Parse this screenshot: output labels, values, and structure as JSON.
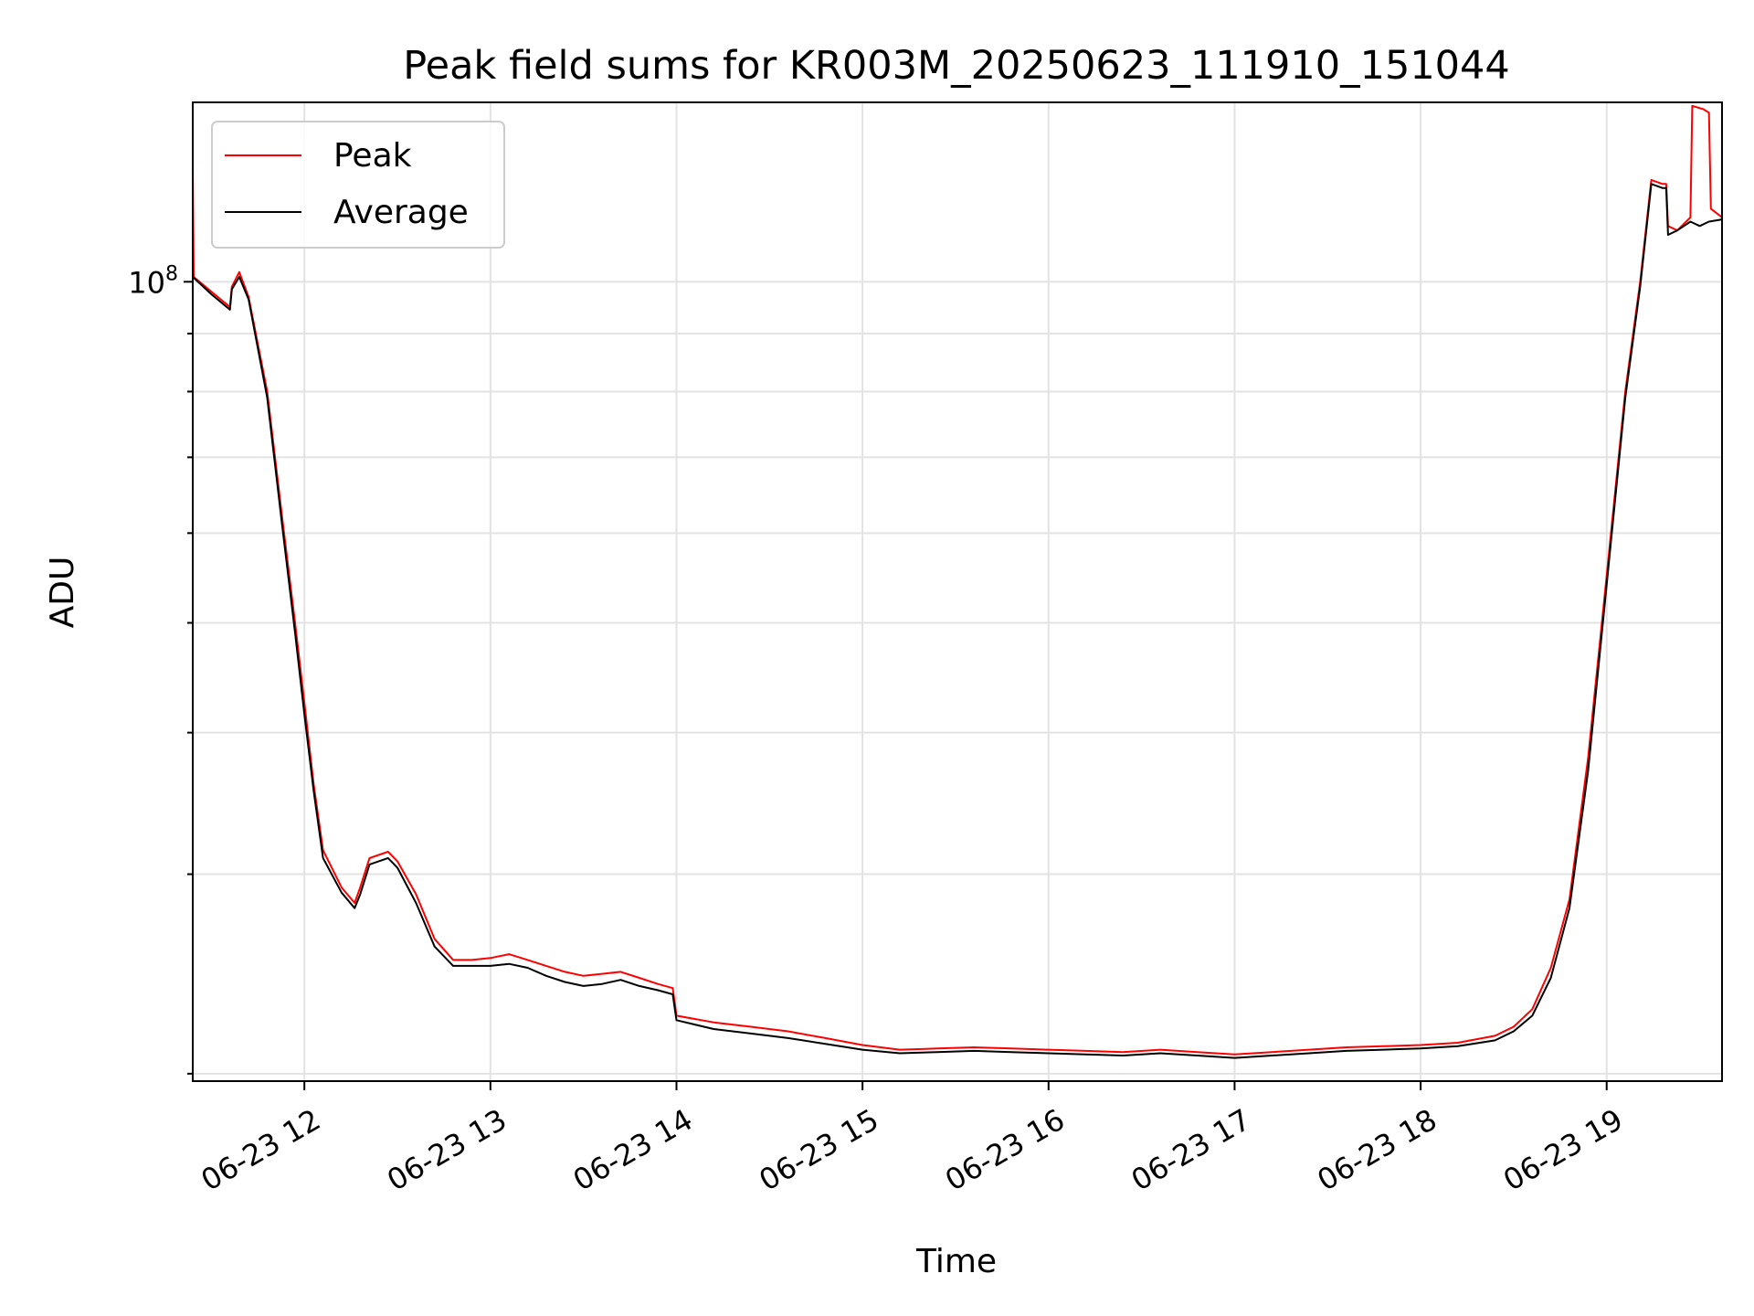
{
  "chart_data": {
    "type": "line",
    "title": "Peak field sums for KR003M_20250623_111910_151044",
    "xlabel": "Time",
    "ylabel": "ADU",
    "y_scale": "log",
    "x_unit": "hours on 2025-06-23",
    "xlim": [
      11.4,
      19.62
    ],
    "ylim": [
      19700000,
      144000000
    ],
    "x_ticks": [
      {
        "value": 12,
        "label": "06-23 12"
      },
      {
        "value": 13,
        "label": "06-23 13"
      },
      {
        "value": 14,
        "label": "06-23 14"
      },
      {
        "value": 15,
        "label": "06-23 15"
      },
      {
        "value": 16,
        "label": "06-23 16"
      },
      {
        "value": 17,
        "label": "06-23 17"
      },
      {
        "value": 18,
        "label": "06-23 18"
      },
      {
        "value": 19,
        "label": "06-23 19"
      }
    ],
    "y_major_ticks": [
      {
        "value": 100000000,
        "label_base": "10",
        "label_exp": "8"
      }
    ],
    "y_minor_ticks": [
      20000000,
      30000000,
      40000000,
      50000000,
      60000000,
      70000000,
      80000000,
      90000000,
      200000000
    ],
    "grid": true,
    "legend": {
      "placement": "top-left"
    },
    "series": [
      {
        "name": "Peak",
        "color": "#ff0000",
        "points": [
          [
            11.4,
            126000000
          ],
          [
            11.405,
            101000000
          ],
          [
            11.5,
            98000000
          ],
          [
            11.6,
            95000000
          ],
          [
            11.61,
            99000000
          ],
          [
            11.65,
            102000000
          ],
          [
            11.7,
            97000000
          ],
          [
            11.8,
            80000000
          ],
          [
            11.88,
            62000000
          ],
          [
            11.95,
            50000000
          ],
          [
            12.0,
            42500000
          ],
          [
            12.05,
            36000000
          ],
          [
            12.1,
            31500000
          ],
          [
            12.2,
            29200000
          ],
          [
            12.27,
            28300000
          ],
          [
            12.3,
            29200000
          ],
          [
            12.35,
            31000000
          ],
          [
            12.45,
            31400000
          ],
          [
            12.5,
            30800000
          ],
          [
            12.6,
            28800000
          ],
          [
            12.7,
            26300000
          ],
          [
            12.8,
            25200000
          ],
          [
            12.9,
            25200000
          ],
          [
            13.0,
            25300000
          ],
          [
            13.1,
            25500000
          ],
          [
            13.2,
            25200000
          ],
          [
            13.3,
            24900000
          ],
          [
            13.4,
            24600000
          ],
          [
            13.5,
            24400000
          ],
          [
            13.6,
            24500000
          ],
          [
            13.7,
            24600000
          ],
          [
            13.8,
            24300000
          ],
          [
            13.9,
            24000000
          ],
          [
            13.98,
            23800000
          ],
          [
            14.0,
            22500000
          ],
          [
            14.2,
            22200000
          ],
          [
            14.4,
            22000000
          ],
          [
            14.6,
            21800000
          ],
          [
            14.8,
            21500000
          ],
          [
            15.0,
            21200000
          ],
          [
            15.2,
            21000000
          ],
          [
            15.4,
            21050000
          ],
          [
            15.6,
            21100000
          ],
          [
            15.8,
            21050000
          ],
          [
            16.0,
            21000000
          ],
          [
            16.2,
            20950000
          ],
          [
            16.4,
            20900000
          ],
          [
            16.6,
            21000000
          ],
          [
            16.8,
            20900000
          ],
          [
            17.0,
            20800000
          ],
          [
            17.2,
            20900000
          ],
          [
            17.4,
            21000000
          ],
          [
            17.6,
            21100000
          ],
          [
            17.8,
            21150000
          ],
          [
            18.0,
            21200000
          ],
          [
            18.2,
            21300000
          ],
          [
            18.4,
            21600000
          ],
          [
            18.5,
            22000000
          ],
          [
            18.6,
            22800000
          ],
          [
            18.7,
            24800000
          ],
          [
            18.8,
            28500000
          ],
          [
            18.9,
            38000000
          ],
          [
            19.0,
            55000000
          ],
          [
            19.1,
            80000000
          ],
          [
            19.18,
            100000000
          ],
          [
            19.24,
            123000000
          ],
          [
            19.3,
            122000000
          ],
          [
            19.32,
            122000000
          ],
          [
            19.33,
            112000000
          ],
          [
            19.38,
            111000000
          ],
          [
            19.45,
            114000000
          ],
          [
            19.46,
            143000000
          ],
          [
            19.52,
            142000000
          ],
          [
            19.55,
            141000000
          ],
          [
            19.56,
            116000000
          ],
          [
            19.62,
            114000000
          ]
        ]
      },
      {
        "name": "Average",
        "color": "#000000",
        "points": [
          [
            11.4,
            101000000
          ],
          [
            11.5,
            97500000
          ],
          [
            11.6,
            94500000
          ],
          [
            11.61,
            98500000
          ],
          [
            11.65,
            101000000
          ],
          [
            11.7,
            96500000
          ],
          [
            11.8,
            79000000
          ],
          [
            11.88,
            61000000
          ],
          [
            11.95,
            49000000
          ],
          [
            12.0,
            41500000
          ],
          [
            12.05,
            35500000
          ],
          [
            12.1,
            31000000
          ],
          [
            12.2,
            28900000
          ],
          [
            12.27,
            28000000
          ],
          [
            12.3,
            28800000
          ],
          [
            12.35,
            30600000
          ],
          [
            12.45,
            31000000
          ],
          [
            12.5,
            30400000
          ],
          [
            12.6,
            28300000
          ],
          [
            12.7,
            25900000
          ],
          [
            12.8,
            24900000
          ],
          [
            12.9,
            24900000
          ],
          [
            13.0,
            24900000
          ],
          [
            13.1,
            25000000
          ],
          [
            13.2,
            24800000
          ],
          [
            13.3,
            24400000
          ],
          [
            13.4,
            24100000
          ],
          [
            13.5,
            23900000
          ],
          [
            13.6,
            24000000
          ],
          [
            13.7,
            24200000
          ],
          [
            13.8,
            23900000
          ],
          [
            13.9,
            23700000
          ],
          [
            13.98,
            23500000
          ],
          [
            14.0,
            22300000
          ],
          [
            14.2,
            21900000
          ],
          [
            14.4,
            21700000
          ],
          [
            14.6,
            21500000
          ],
          [
            14.8,
            21250000
          ],
          [
            15.0,
            21000000
          ],
          [
            15.2,
            20850000
          ],
          [
            15.4,
            20900000
          ],
          [
            15.6,
            20950000
          ],
          [
            15.8,
            20900000
          ],
          [
            16.0,
            20850000
          ],
          [
            16.2,
            20800000
          ],
          [
            16.4,
            20750000
          ],
          [
            16.6,
            20850000
          ],
          [
            16.8,
            20750000
          ],
          [
            17.0,
            20650000
          ],
          [
            17.2,
            20750000
          ],
          [
            17.4,
            20850000
          ],
          [
            17.6,
            20950000
          ],
          [
            17.8,
            21000000
          ],
          [
            18.0,
            21050000
          ],
          [
            18.2,
            21150000
          ],
          [
            18.4,
            21400000
          ],
          [
            18.5,
            21800000
          ],
          [
            18.6,
            22500000
          ],
          [
            18.7,
            24300000
          ],
          [
            18.8,
            28000000
          ],
          [
            18.9,
            37000000
          ],
          [
            19.0,
            54000000
          ],
          [
            19.1,
            79000000
          ],
          [
            19.18,
            99000000
          ],
          [
            19.24,
            122000000
          ],
          [
            19.3,
            121000000
          ],
          [
            19.32,
            121000000
          ],
          [
            19.33,
            110000000
          ],
          [
            19.38,
            111000000
          ],
          [
            19.45,
            113000000
          ],
          [
            19.5,
            112000000
          ],
          [
            19.55,
            113000000
          ],
          [
            19.62,
            113500000
          ]
        ]
      }
    ]
  }
}
